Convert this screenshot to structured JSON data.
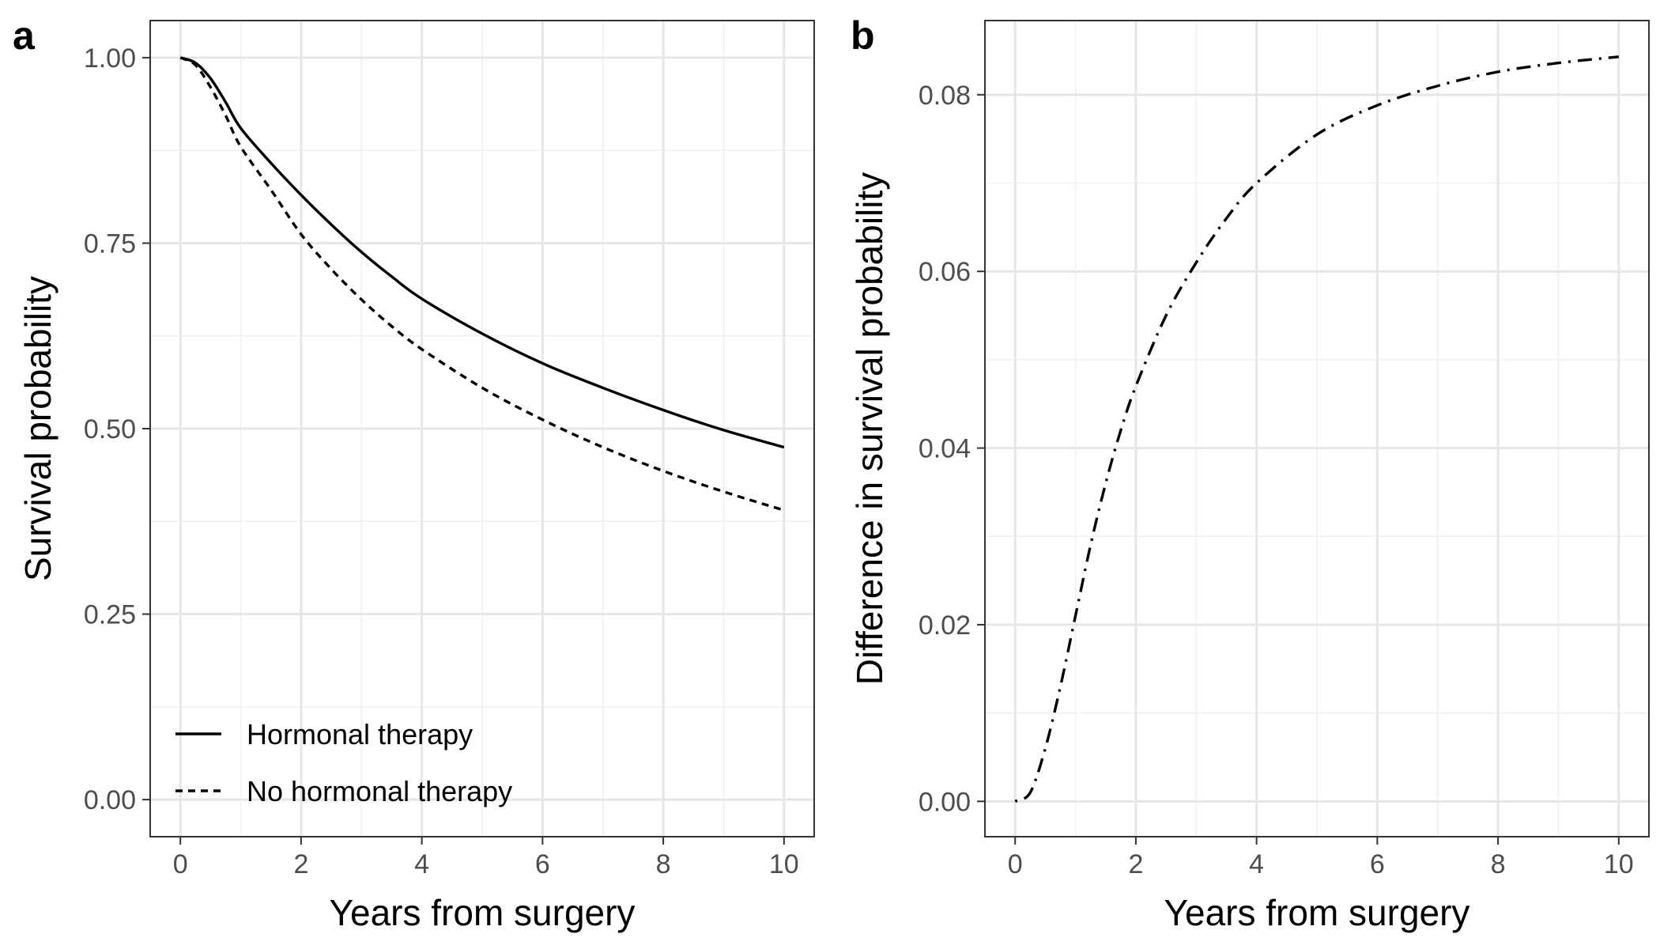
{
  "chart_data": [
    {
      "panel_label": "a",
      "type": "line",
      "xlabel": "Years from surgery",
      "ylabel": "Survival probability",
      "xlim": [
        -0.5,
        10.5
      ],
      "ylim": [
        -0.05,
        1.05
      ],
      "x_ticks": [
        "0",
        "2",
        "4",
        "6",
        "8",
        "10"
      ],
      "y_ticks": [
        "0.00",
        "0.25",
        "0.50",
        "0.75",
        "1.00"
      ],
      "grid": true,
      "legend_position": "bottom-left",
      "x": [
        0,
        0.25,
        0.5,
        0.75,
        1,
        1.5,
        2,
        2.5,
        3,
        3.5,
        4,
        5,
        6,
        7,
        8,
        9,
        10
      ],
      "series": [
        {
          "name": "Hormonal therapy",
          "line_style": "solid",
          "values": [
            1.0,
            0.993,
            0.972,
            0.94,
            0.905,
            0.858,
            0.815,
            0.775,
            0.738,
            0.705,
            0.675,
            0.628,
            0.588,
            0.555,
            0.525,
            0.498,
            0.475
          ]
        },
        {
          "name": "No hormonal therapy",
          "line_style": "dashed",
          "values": [
            1.0,
            0.99,
            0.96,
            0.922,
            0.88,
            0.822,
            0.762,
            0.715,
            0.674,
            0.638,
            0.607,
            0.555,
            0.512,
            0.475,
            0.443,
            0.415,
            0.39
          ]
        }
      ]
    },
    {
      "panel_label": "b",
      "type": "line",
      "xlabel": "Years from surgery",
      "ylabel": "Difference in survival probability",
      "xlim": [
        -0.5,
        10.5
      ],
      "ylim": [
        -0.004,
        0.0884
      ],
      "x_ticks": [
        "0",
        "2",
        "4",
        "6",
        "8",
        "10"
      ],
      "y_ticks": [
        "0.00",
        "0.02",
        "0.04",
        "0.06",
        "0.08"
      ],
      "grid": true,
      "x": [
        0,
        0.25,
        0.5,
        0.75,
        1,
        1.25,
        1.5,
        1.75,
        2,
        2.5,
        3,
        3.5,
        4,
        5,
        6,
        7,
        8,
        9,
        10
      ],
      "series": [
        {
          "line_style": "dotdash",
          "values": [
            0.0,
            0.001,
            0.006,
            0.013,
            0.021,
            0.029,
            0.036,
            0.042,
            0.047,
            0.055,
            0.061,
            0.066,
            0.07,
            0.0755,
            0.0788,
            0.081,
            0.0826,
            0.0836,
            0.0843
          ]
        }
      ]
    }
  ]
}
